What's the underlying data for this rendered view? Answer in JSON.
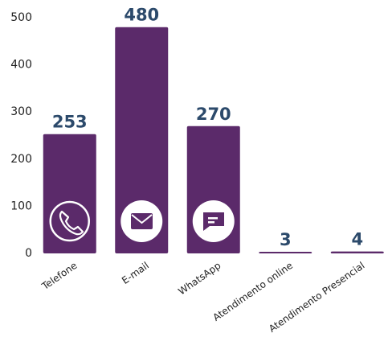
{
  "chart_data": {
    "type": "bar",
    "categories": [
      "Telefone",
      "E-mail",
      "WhatsApp",
      "Atendimento online",
      "Atendimento Presencial"
    ],
    "values": [
      253,
      480,
      270,
      3,
      4
    ],
    "color": "#5b2a6a",
    "ylim": [
      0,
      500
    ],
    "yticks": [
      0,
      100,
      200,
      300,
      400,
      500
    ],
    "grid": false
  }
}
